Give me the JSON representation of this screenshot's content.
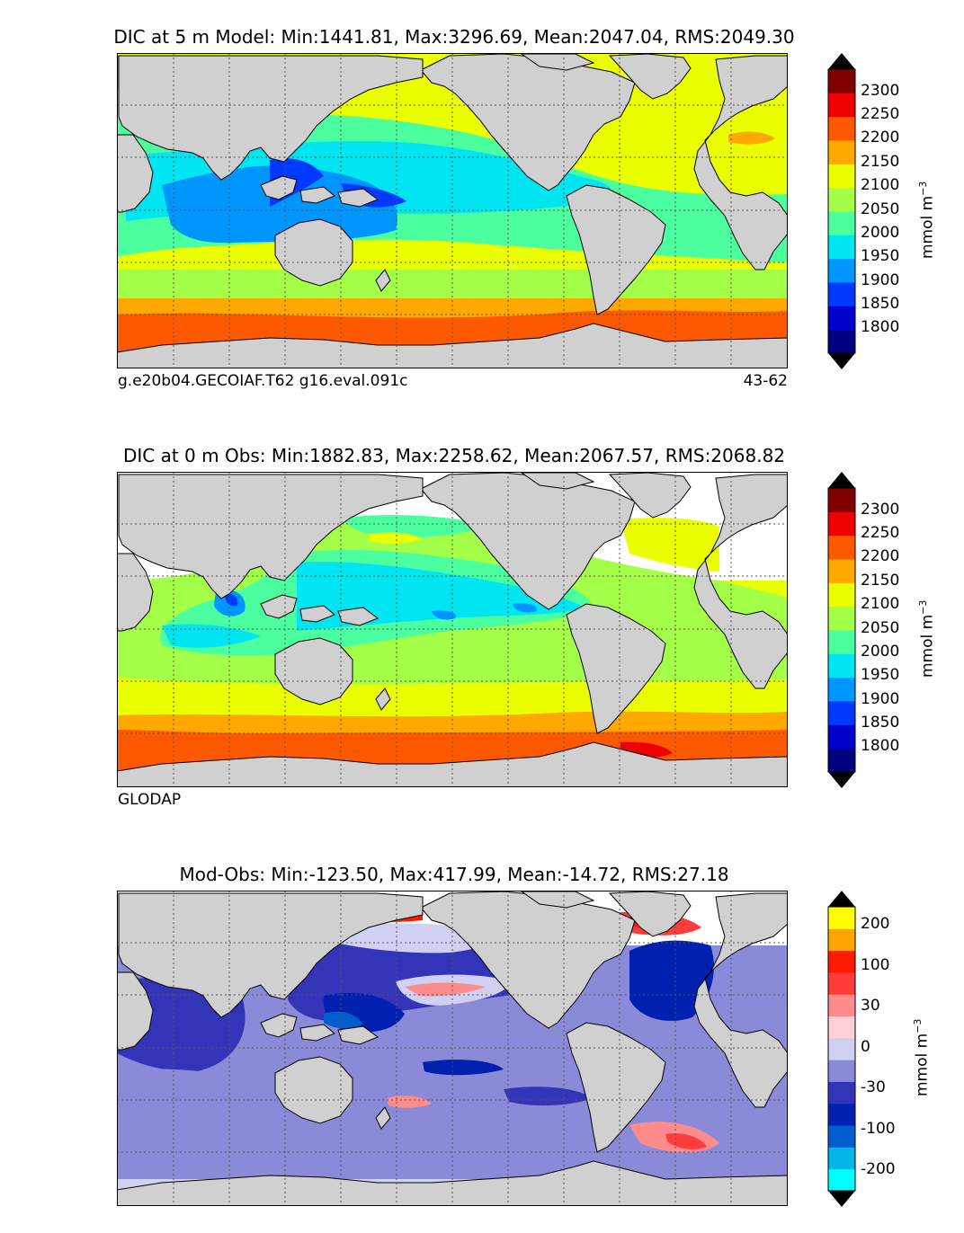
{
  "colors": {
    "land": "#d0d0d0",
    "model_obs_scale": [
      "#000080",
      "#0000cd",
      "#0039ff",
      "#0096ff",
      "#00e5f2",
      "#4cff9e",
      "#a4ff48",
      "#eaff00",
      "#ffa800",
      "#ff5900",
      "#ee0000",
      "#800000"
    ],
    "diff_scale": [
      "#00ffff",
      "#00b5e8",
      "#005ecd",
      "#0020b0",
      "#3434b8",
      "#8a8ad8",
      "#d0d0f2",
      "#ffd0d8",
      "#ff8c8c",
      "#ff3c3c",
      "#ff1a00",
      "#ffa500",
      "#ffff00"
    ]
  },
  "panels": [
    {
      "title": "DIC at 5 m Model: Min:1441.81, Max:3296.69, Mean:2047.04, RMS:2049.30",
      "footer_left": "g.e20b04.GECOIAF.T62 g16.eval.091c",
      "footer_right": "43-62",
      "colorbar": {
        "ticks": [
          "2300",
          "2250",
          "2200",
          "2150",
          "2100",
          "2050",
          "2000",
          "1950",
          "1900",
          "1850",
          "1800"
        ],
        "label": "mmol m",
        "label_exp": "−3"
      }
    },
    {
      "title": "DIC at 0 m Obs: Min:1882.83, Max:2258.62, Mean:2067.57, RMS:2068.82",
      "footer_left": "GLODAP",
      "footer_right": "",
      "colorbar": {
        "ticks": [
          "2300",
          "2250",
          "2200",
          "2150",
          "2100",
          "2050",
          "2000",
          "1950",
          "1900",
          "1850",
          "1800"
        ],
        "label": "mmol m",
        "label_exp": "−3"
      }
    },
    {
      "title": "Mod-Obs: Min:-123.50, Max:417.99, Mean:-14.72, RMS:27.18",
      "footer_left": "",
      "footer_right": "",
      "colorbar": {
        "ticks": [
          "200",
          "100",
          "30",
          "0",
          "-30",
          "-100",
          "-200"
        ],
        "label": "mmol m",
        "label_exp": "−3"
      }
    }
  ]
}
